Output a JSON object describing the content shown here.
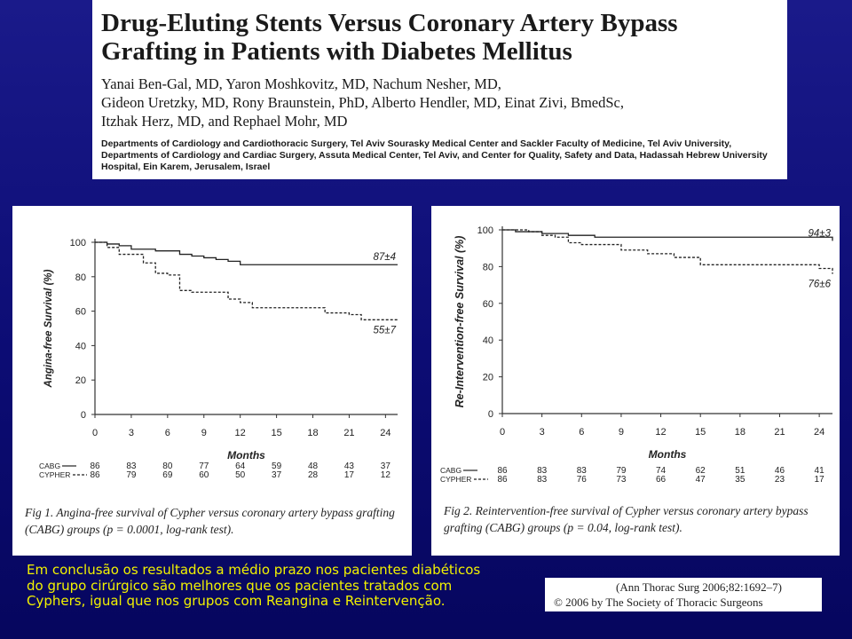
{
  "paper": {
    "title_line1": "Drug-Eluting Stents Versus Coronary Artery Bypass",
    "title_line2": "Grafting in Patients with Diabetes Mellitus",
    "authors_line1": "Yanai Ben-Gal, MD, Yaron Moshkovitz, MD, Nachum Nesher, MD,",
    "authors_line2": "Gideon Uretzky, MD, Rony Braunstein, PhD, Alberto Hendler, MD, Einat Zivi, BmedSc,",
    "authors_line3": "Itzhak Herz, MD, and Rephael Mohr, MD",
    "affiliation": "Departments of Cardiology and Cardiothoracic Surgery, Tel Aviv Sourasky Medical Center and Sackler Faculty of Medicine, Tel Aviv University, Departments of Cardiology and Cardiac Surgery, Assuta Medical Center, Tel Aviv, and Center for Quality, Safety and Data, Hadassah Hebrew University Hospital, Ein Karem, Jerusalem, Israel"
  },
  "bottom_text": "Em conclusão os resultados a médio prazo nos pacientes diabéticos  do grupo cirúrgico são melhores que os pacientes tratados com  Cyphers, igual que nos grupos com Reangina e Reintervenção.",
  "citation": {
    "line1": "(Ann Thorac Surg 2006;82:1692–7)",
    "line2": "© 2006 by The Society of Thoracic Surgeons"
  },
  "colors": {
    "background": "#0c0c74",
    "bottom_text": "#f2f200"
  },
  "chart_data": [
    {
      "type": "line",
      "caption": "Fig 1. Angina-free survival of Cypher versus coronary artery bypass grafting (CABG) groups (p = 0.0001, log-rank test).",
      "xlabel": "Months",
      "ylabel": "Angina-free Survival (%)",
      "xlim": [
        0,
        25
      ],
      "ylim": [
        0,
        100
      ],
      "x_ticks": [
        "0",
        "3",
        "6",
        "9",
        "12",
        "15",
        "18",
        "21",
        "24"
      ],
      "y_ticks": [
        "0",
        "20",
        "40",
        "60",
        "80",
        "100"
      ],
      "series": [
        {
          "name": "CABG",
          "style": "solid",
          "end_label": "87±4",
          "x": [
            0,
            1,
            2,
            3,
            4,
            5,
            6,
            7,
            8,
            9,
            10,
            11,
            12,
            25
          ],
          "y": [
            100,
            99,
            98,
            96,
            96,
            95,
            95,
            93,
            92,
            91,
            90,
            89,
            87,
            87
          ]
        },
        {
          "name": "CYPHER",
          "style": "dashed",
          "end_label": "55±7",
          "x": [
            0,
            1,
            2,
            3,
            4,
            5,
            6,
            7,
            8,
            10,
            11,
            12,
            13,
            14,
            18,
            19,
            20,
            21,
            22,
            25
          ],
          "y": [
            100,
            97,
            93,
            93,
            88,
            82,
            81,
            72,
            71,
            71,
            67,
            65,
            62,
            62,
            62,
            59,
            59,
            58,
            55,
            55
          ]
        }
      ],
      "risk_table": {
        "rows": [
          {
            "label": "CABG",
            "values": [
              "86",
              "83",
              "80",
              "77",
              "64",
              "59",
              "48",
              "43",
              "37"
            ]
          },
          {
            "label": "CYPHER",
            "values": [
              "86",
              "79",
              "69",
              "60",
              "50",
              "37",
              "28",
              "17",
              "12"
            ]
          }
        ]
      }
    },
    {
      "type": "line",
      "caption": "Fig 2. Reintervention-free survival of Cypher versus coronary artery bypass grafting (CABG) groups (p = 0.04, log-rank test).",
      "xlabel": "Months",
      "ylabel": "Re-Intervention-free Survival (%)",
      "xlim": [
        0,
        25
      ],
      "ylim": [
        0,
        100
      ],
      "x_ticks": [
        "0",
        "3",
        "6",
        "9",
        "12",
        "15",
        "18",
        "21",
        "24"
      ],
      "y_ticks": [
        "0",
        "20",
        "40",
        "60",
        "80",
        "100"
      ],
      "series": [
        {
          "name": "CABG",
          "style": "solid",
          "end_label": "94±3",
          "x": [
            0,
            1,
            3,
            5,
            7,
            24,
            25
          ],
          "y": [
            100,
            99,
            98,
            97,
            96,
            96,
            94
          ]
        },
        {
          "name": "CYPHER",
          "style": "dashed",
          "end_label": "76±6",
          "x": [
            0,
            2,
            3,
            4,
            5,
            6,
            9,
            11,
            13,
            15,
            24,
            25
          ],
          "y": [
            100,
            99,
            97,
            96,
            93,
            92,
            89,
            87,
            85,
            81,
            79,
            76
          ]
        }
      ],
      "risk_table": {
        "rows": [
          {
            "label": "CABG",
            "values": [
              "86",
              "83",
              "83",
              "79",
              "74",
              "62",
              "51",
              "46",
              "41"
            ]
          },
          {
            "label": "CYPHER",
            "values": [
              "86",
              "83",
              "76",
              "73",
              "66",
              "47",
              "35",
              "23",
              "17"
            ]
          }
        ]
      }
    }
  ]
}
